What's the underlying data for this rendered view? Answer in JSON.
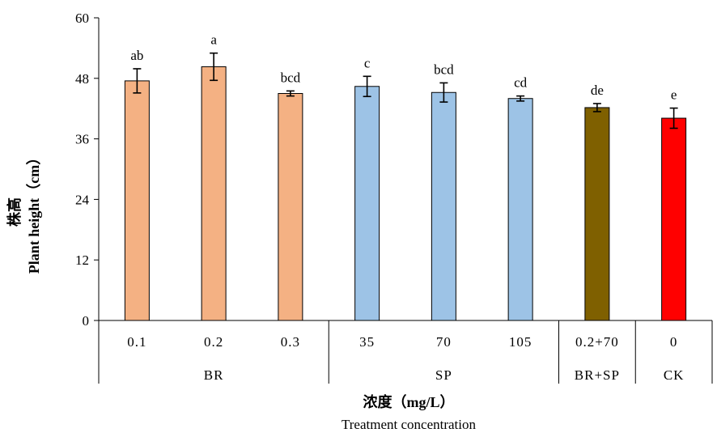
{
  "chart_data": {
    "type": "bar",
    "ylabel": [
      "株高",
      "Plant height（cm）"
    ],
    "xlabel": [
      "浓度（mg/L）",
      "Treatment concentration"
    ],
    "ylim": [
      0,
      60
    ],
    "yticks": [
      "0",
      "12",
      "24",
      "36",
      "48",
      "60"
    ],
    "categories": [
      "0.1",
      "0.2",
      "0.3",
      "35",
      "70",
      "105",
      "0.2+70",
      "0"
    ],
    "groups": [
      {
        "label": "BR",
        "span": [
          0,
          2
        ]
      },
      {
        "label": "SP",
        "span": [
          3,
          5
        ]
      },
      {
        "label": "BR+SP",
        "span": [
          6,
          6
        ]
      },
      {
        "label": "CK",
        "span": [
          7,
          7
        ]
      }
    ],
    "values": [
      47.5,
      50.3,
      45.0,
      46.4,
      45.2,
      44.0,
      42.2,
      40.1
    ],
    "errors": [
      2.4,
      2.7,
      0.5,
      2.0,
      1.9,
      0.5,
      0.8,
      2.0
    ],
    "significance": [
      "ab",
      "a",
      "bcd",
      "c",
      "bcd",
      "cd",
      "de",
      "e"
    ],
    "bar_colors": [
      "#F4B183",
      "#F4B183",
      "#F4B183",
      "#9DC3E6",
      "#9DC3E6",
      "#9DC3E6",
      "#7F6000",
      "#FF0000"
    ],
    "grid": false,
    "legend": "none"
  }
}
